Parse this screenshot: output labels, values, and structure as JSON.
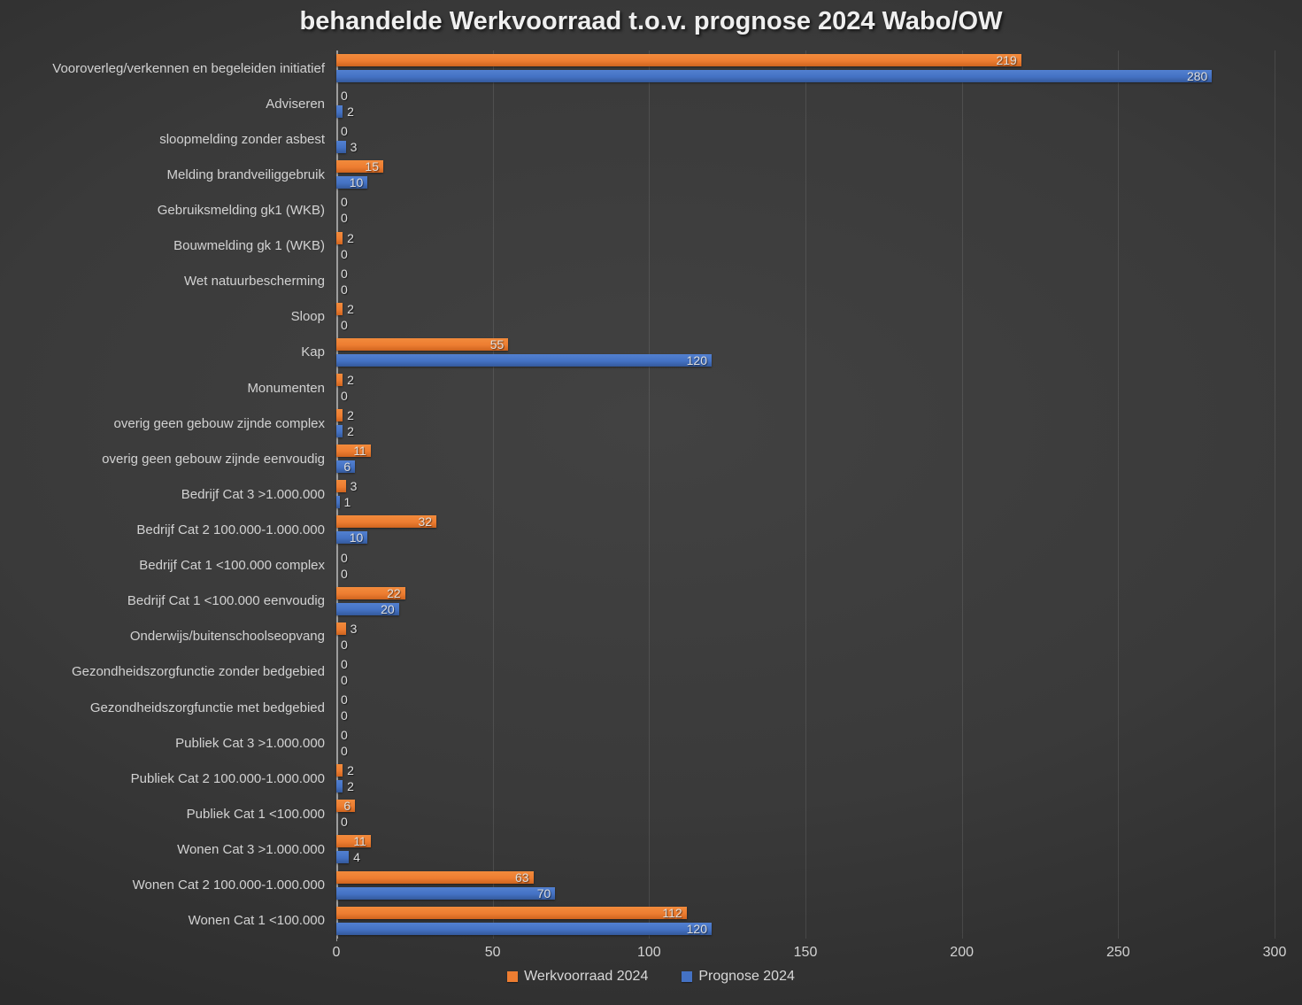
{
  "chart_data": {
    "type": "bar",
    "orientation": "horizontal",
    "title": "behandelde Werkvoorraad t.o.v. prognose 2024 Wabo/OW",
    "categories": [
      "Vooroverleg/verkennen en begeleiden initiatief",
      "Adviseren",
      "sloopmelding zonder asbest",
      "Melding brandveiliggebruik",
      "Gebruiksmelding gk1 (WKB)",
      "Bouwmelding gk 1 (WKB)",
      "Wet natuurbescherming",
      "Sloop",
      "Kap",
      "Monumenten",
      "overig geen gebouw zijnde complex",
      "overig geen gebouw zijnde eenvoudig",
      "Bedrijf Cat 3 >1.000.000",
      "Bedrijf Cat 2 100.000-1.000.000",
      "Bedrijf Cat 1 <100.000 complex",
      "Bedrijf Cat 1 <100.000 eenvoudig",
      "Onderwijs/buitenschoolseopvang",
      "Gezondheidszorgfunctie zonder bedgebied",
      "Gezondheidszorgfunctie met bedgebied",
      "Publiek Cat 3 >1.000.000",
      "Publiek Cat 2 100.000-1.000.000",
      "Publiek Cat 1 <100.000",
      "Wonen Cat 3 >1.000.000",
      "Wonen Cat 2 100.000-1.000.000",
      "Wonen Cat 1 <100.000"
    ],
    "series": [
      {
        "name": "Werkvoorraad 2024",
        "color": "#ED7D31",
        "values": [
          219,
          0,
          0,
          15,
          0,
          2,
          0,
          2,
          55,
          2,
          2,
          11,
          3,
          32,
          0,
          22,
          3,
          0,
          0,
          0,
          2,
          6,
          11,
          63,
          112
        ]
      },
      {
        "name": "Prognose 2024",
        "color": "#4472C4",
        "values": [
          280,
          2,
          3,
          10,
          0,
          0,
          0,
          0,
          120,
          0,
          2,
          6,
          1,
          10,
          0,
          20,
          0,
          0,
          0,
          0,
          2,
          0,
          4,
          70,
          120
        ]
      }
    ],
    "xlim": [
      0,
      300
    ],
    "xticks": [
      0,
      50,
      100,
      150,
      200,
      250,
      300
    ],
    "grid": "vertical",
    "legend_position": "bottom",
    "value_labels": "inside-end"
  },
  "colors": {
    "background_center": "#424242",
    "background_edge": "#222222",
    "werkvoorraad_orange": "#ED7D31",
    "prognose_blue": "#4472C4",
    "text": "#D2D2D2",
    "axis_line": "#9D9D9D",
    "gridline": "rgba(255,255,255,0.10)"
  }
}
